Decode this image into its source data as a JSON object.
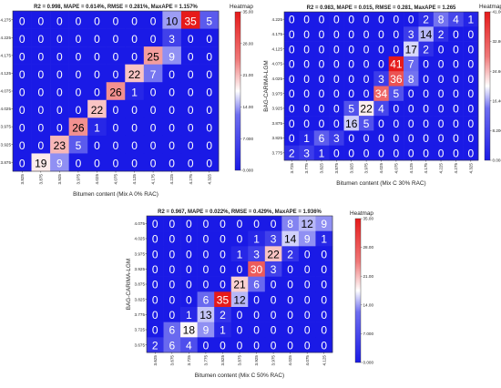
{
  "chart_data": [
    {
      "type": "heatmap",
      "title": "R2 = 0.998, MAPE = 0.614%, RMSE = 0.281%, MaxAPE = 1.157%",
      "xlabel": "Bitumen content (Mix A 0% RAC)",
      "ylabel": "BAG-CARIMA-LGM",
      "colorbar_title": "Heatmap",
      "colorbar_ticks": [
        "35.00",
        "28.00",
        "21.00",
        "14.00",
        "7.000",
        "0.000"
      ],
      "vmin": 0,
      "vmax": 35,
      "x_categories": [
        "3.825",
        "3.875",
        "3.925",
        "3.975",
        "4.025",
        "4.075",
        "4.125",
        "4.175",
        "4.225",
        "4.275",
        "4.325"
      ],
      "y_categories": [
        "4.275",
        "4.225",
        "4.175",
        "4.125",
        "4.075",
        "4.025",
        "3.975",
        "3.925",
        "3.875"
      ],
      "values": [
        [
          0,
          0,
          0,
          0,
          0,
          0,
          0,
          0,
          10,
          35,
          5
        ],
        [
          0,
          0,
          0,
          0,
          0,
          0,
          0,
          0,
          3,
          0,
          0
        ],
        [
          0,
          0,
          0,
          0,
          0,
          0,
          0,
          25,
          9,
          0,
          0
        ],
        [
          0,
          0,
          0,
          0,
          0,
          0,
          22,
          7,
          0,
          0,
          0
        ],
        [
          0,
          0,
          0,
          0,
          0,
          26,
          1,
          0,
          0,
          0,
          0
        ],
        [
          0,
          0,
          0,
          0,
          22,
          0,
          0,
          0,
          0,
          0,
          0
        ],
        [
          0,
          0,
          0,
          26,
          1,
          0,
          0,
          0,
          0,
          0,
          0
        ],
        [
          0,
          0,
          23,
          5,
          0,
          0,
          0,
          0,
          0,
          0,
          0
        ],
        [
          0,
          19,
          9,
          0,
          0,
          0,
          0,
          0,
          0,
          0,
          0
        ]
      ]
    },
    {
      "type": "heatmap",
      "title": "R2 = 0.983, MAPE = 0.015, RMSE = 0.281, MaxAPE = 1.265",
      "xlabel": "Bitumen content (Mix C 30% RAC)",
      "ylabel": "BAG-CARIMA-LGM",
      "colorbar_title": "Heatmap",
      "colorbar_ticks": [
        "41.00",
        "32.80",
        "24.60",
        "16.40",
        "8.200",
        "0.003"
      ],
      "vmin": 0,
      "vmax": 41,
      "x_categories": [
        "3.725",
        "3.775",
        "3.825",
        "3.875",
        "3.925",
        "3.975",
        "4.025",
        "4.075",
        "4.125",
        "4.175",
        "4.225",
        "4.275",
        "4.325"
      ],
      "y_categories": [
        "4.225",
        "4.175",
        "4.125",
        "4.075",
        "4.025",
        "3.975",
        "3.925",
        "3.875",
        "3.825",
        "3.775"
      ],
      "values": [
        [
          0,
          0,
          0,
          0,
          0,
          0,
          0,
          0,
          0,
          2,
          8,
          4,
          1
        ],
        [
          0,
          0,
          0,
          0,
          0,
          0,
          0,
          0,
          3,
          14,
          2,
          0,
          0
        ],
        [
          0,
          0,
          0,
          0,
          0,
          0,
          0,
          0,
          17,
          2,
          0,
          0,
          0
        ],
        [
          0,
          0,
          0,
          0,
          0,
          0,
          0,
          41,
          7,
          0,
          0,
          0,
          0
        ],
        [
          0,
          0,
          0,
          0,
          0,
          0,
          3,
          36,
          8,
          0,
          0,
          0,
          0
        ],
        [
          0,
          0,
          0,
          0,
          0,
          0,
          34,
          5,
          0,
          0,
          0,
          0,
          0
        ],
        [
          0,
          0,
          0,
          0,
          5,
          22,
          4,
          0,
          0,
          0,
          0,
          0,
          0
        ],
        [
          0,
          0,
          0,
          0,
          16,
          5,
          0,
          0,
          0,
          0,
          0,
          0,
          0
        ],
        [
          0,
          1,
          6,
          3,
          0,
          0,
          0,
          0,
          0,
          0,
          0,
          0,
          0
        ],
        [
          2,
          3,
          1,
          0,
          0,
          0,
          0,
          0,
          0,
          0,
          0,
          0,
          0
        ]
      ]
    },
    {
      "type": "heatmap",
      "title": "R2 = 0.967, MAPE = 0.022%, RMSE = 0.429%, MaxAPE = 1.936%",
      "xlabel": "Bitumen content (Mix C 50% RAC)",
      "ylabel": "BAG-CARIMA-LGM",
      "colorbar_title": "Heatmap",
      "colorbar_ticks": [
        "35.00",
        "28.00",
        "21.00",
        "14.00",
        "7.000",
        "0.000"
      ],
      "vmin": 0,
      "vmax": 35,
      "x_categories": [
        "3.625",
        "3.675",
        "3.725",
        "3.775",
        "3.825",
        "3.875",
        "3.925",
        "3.975",
        "4.025",
        "4.075",
        "4.125"
      ],
      "y_categories": [
        "4.075",
        "4.025",
        "3.975",
        "3.925",
        "3.875",
        "3.825",
        "3.775",
        "3.725",
        "3.675"
      ],
      "values": [
        [
          0,
          0,
          0,
          0,
          0,
          0,
          0,
          0,
          8,
          12,
          9
        ],
        [
          0,
          0,
          0,
          0,
          0,
          0,
          1,
          3,
          14,
          9,
          1
        ],
        [
          0,
          0,
          0,
          0,
          0,
          1,
          3,
          22,
          2,
          0,
          0
        ],
        [
          0,
          0,
          0,
          0,
          0,
          0,
          30,
          3,
          0,
          0,
          0
        ],
        [
          0,
          0,
          0,
          0,
          0,
          21,
          6,
          0,
          0,
          0,
          0
        ],
        [
          0,
          0,
          0,
          6,
          35,
          12,
          0,
          0,
          0,
          0,
          0
        ],
        [
          0,
          0,
          1,
          13,
          2,
          0,
          0,
          0,
          0,
          0,
          0
        ],
        [
          0,
          6,
          18,
          9,
          1,
          0,
          0,
          0,
          0,
          0,
          0
        ],
        [
          2,
          6,
          4,
          0,
          0,
          0,
          0,
          0,
          0,
          0,
          0
        ]
      ]
    }
  ]
}
